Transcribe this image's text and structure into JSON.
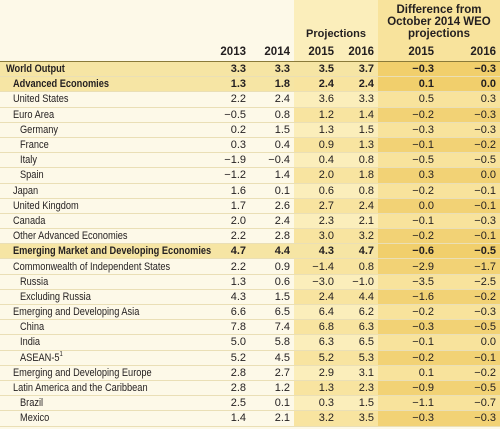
{
  "header": {
    "projections": "Projections",
    "difference": "Difference from October 2014 WEO projections",
    "years": [
      "2013",
      "2014",
      "2015",
      "2016",
      "2015",
      "2016"
    ]
  },
  "table": {
    "rows": [
      {
        "label": "World Output",
        "values": [
          "3.3",
          "3.3",
          "3.5",
          "3.7",
          "−0.3",
          "−0.3"
        ]
      },
      {
        "label": "Advanced Economies",
        "values": [
          "1.3",
          "1.8",
          "2.4",
          "2.4",
          "0.1",
          "0.0"
        ]
      },
      {
        "label": "United States",
        "values": [
          "2.2",
          "2.4",
          "3.6",
          "3.3",
          "0.5",
          "0.3"
        ]
      },
      {
        "label": "Euro Area",
        "values": [
          "−0.5",
          "0.8",
          "1.2",
          "1.4",
          "−0.2",
          "−0.3"
        ]
      },
      {
        "label": "Germany",
        "values": [
          "0.2",
          "1.5",
          "1.3",
          "1.5",
          "−0.3",
          "−0.3"
        ]
      },
      {
        "label": "France",
        "values": [
          "0.3",
          "0.4",
          "0.9",
          "1.3",
          "−0.1",
          "−0.2"
        ]
      },
      {
        "label": "Italy",
        "values": [
          "−1.9",
          "−0.4",
          "0.4",
          "0.8",
          "−0.5",
          "−0.5"
        ]
      },
      {
        "label": "Spain",
        "values": [
          "−1.2",
          "1.4",
          "2.0",
          "1.8",
          "0.3",
          "0.0"
        ]
      },
      {
        "label": "Japan",
        "values": [
          "1.6",
          "0.1",
          "0.6",
          "0.8",
          "−0.2",
          "−0.1"
        ]
      },
      {
        "label": "United Kingdom",
        "values": [
          "1.7",
          "2.6",
          "2.7",
          "2.4",
          "0.0",
          "−0.1"
        ]
      },
      {
        "label": "Canada",
        "values": [
          "2.0",
          "2.4",
          "2.3",
          "2.1",
          "−0.1",
          "−0.3"
        ]
      },
      {
        "label": "Other Advanced Economies",
        "values": [
          "2.2",
          "2.8",
          "3.0",
          "3.2",
          "−0.2",
          "−0.1"
        ]
      },
      {
        "label": "Emerging Market and Developing Economies",
        "values": [
          "4.7",
          "4.4",
          "4.3",
          "4.7",
          "−0.6",
          "−0.5"
        ]
      },
      {
        "label": "Commonwealth of Independent States",
        "values": [
          "2.2",
          "0.9",
          "−1.4",
          "0.8",
          "−2.9",
          "−1.7"
        ]
      },
      {
        "label": "Russia",
        "values": [
          "1.3",
          "0.6",
          "−3.0",
          "−1.0",
          "−3.5",
          "−2.5"
        ]
      },
      {
        "label": "Excluding Russia",
        "values": [
          "4.3",
          "1.5",
          "2.4",
          "4.4",
          "−1.6",
          "−0.2"
        ]
      },
      {
        "label": "Emerging and Developing Asia",
        "values": [
          "6.6",
          "6.5",
          "6.4",
          "6.2",
          "−0.2",
          "−0.3"
        ]
      },
      {
        "label": "China",
        "values": [
          "7.8",
          "7.4",
          "6.8",
          "6.3",
          "−0.3",
          "−0.5"
        ]
      },
      {
        "label": "India",
        "values": [
          "5.0",
          "5.8",
          "6.3",
          "6.5",
          "−0.1",
          "0.0"
        ]
      },
      {
        "label": "ASEAN-5",
        "footnote": "1",
        "values": [
          "5.2",
          "4.5",
          "5.2",
          "5.3",
          "−0.2",
          "−0.1"
        ]
      },
      {
        "label": "Emerging and Developing Europe",
        "values": [
          "2.8",
          "2.7",
          "2.9",
          "3.1",
          "0.1",
          "−0.2"
        ]
      },
      {
        "label": "Latin America and the Caribbean",
        "values": [
          "2.8",
          "1.2",
          "1.3",
          "2.3",
          "−0.9",
          "−0.5"
        ]
      },
      {
        "label": "Brazil",
        "values": [
          "2.5",
          "0.1",
          "0.3",
          "1.5",
          "−1.1",
          "−0.7"
        ]
      },
      {
        "label": "Mexico",
        "values": [
          "1.4",
          "2.1",
          "3.2",
          "3.5",
          "−0.3",
          "−0.3"
        ]
      }
    ]
  }
}
